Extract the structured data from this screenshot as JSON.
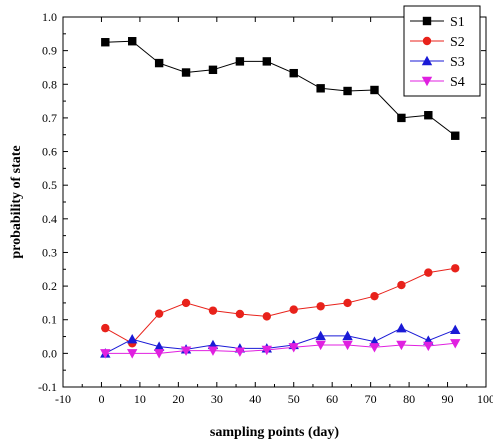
{
  "chart_data": {
    "type": "line",
    "title": "",
    "xlabel": "sampling points (day)",
    "ylabel": "probability of state",
    "xlim": [
      -10,
      100
    ],
    "ylim": [
      -0.1,
      1.0
    ],
    "x_ticks": [
      "-10",
      "0",
      "10",
      "20",
      "30",
      "40",
      "50",
      "60",
      "70",
      "80",
      "90",
      "100"
    ],
    "y_ticks": [
      "-0.1",
      "0.0",
      "0.1",
      "0.2",
      "0.3",
      "0.4",
      "0.5",
      "0.6",
      "0.7",
      "0.8",
      "0.9",
      "1.0"
    ],
    "legend_position": "top-right",
    "x": [
      1,
      8,
      15,
      22,
      29,
      36,
      43,
      50,
      57,
      64,
      71,
      78,
      85,
      92
    ],
    "series": [
      {
        "name": "S1",
        "color": "#000000",
        "marker": "square",
        "values": [
          0.925,
          0.928,
          0.863,
          0.835,
          0.843,
          0.868,
          0.868,
          0.833,
          0.788,
          0.78,
          0.783,
          0.7,
          0.708,
          0.647
        ]
      },
      {
        "name": "S2",
        "color": "#e8221b",
        "marker": "circle",
        "values": [
          0.075,
          0.03,
          0.118,
          0.15,
          0.127,
          0.117,
          0.11,
          0.13,
          0.14,
          0.15,
          0.17,
          0.203,
          0.24,
          0.253
        ]
      },
      {
        "name": "S3",
        "color": "#1a1ad6",
        "marker": "triangle-up",
        "values": [
          0.0,
          0.042,
          0.02,
          0.012,
          0.025,
          0.015,
          0.015,
          0.025,
          0.052,
          0.052,
          0.035,
          0.075,
          0.038,
          0.07
        ]
      },
      {
        "name": "S4",
        "color": "#e020e0",
        "marker": "triangle-down",
        "values": [
          0.0,
          0.0,
          0.0,
          0.008,
          0.008,
          0.005,
          0.01,
          0.018,
          0.025,
          0.025,
          0.018,
          0.025,
          0.022,
          0.03
        ]
      }
    ]
  }
}
